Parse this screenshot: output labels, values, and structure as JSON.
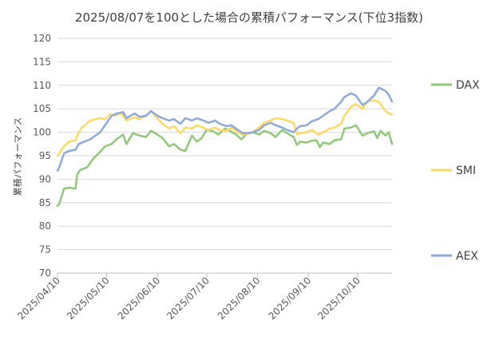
{
  "chart_data": {
    "type": "line",
    "title": "2025/08/07を100とした場合の累積パフォーマンス(下位3指数)",
    "xlabel": "",
    "ylabel": "累積パフォーマンス",
    "ylim": [
      70,
      120
    ],
    "yticks": [
      70,
      75,
      80,
      85,
      90,
      95,
      100,
      105,
      110,
      115,
      120
    ],
    "x_start": "2025/04/10",
    "x_end": "2025/10/31",
    "xticks": [
      "2025/04/10",
      "2025/05/10",
      "2025/06/10",
      "2025/07/10",
      "2025/08/10",
      "2025/09/10",
      "2025/10/10"
    ],
    "grid": "horizontal",
    "legend": "right",
    "series": [
      {
        "name": "DAX",
        "color": "#90C978",
        "points": [
          [
            "2025/04/10",
            84.3
          ],
          [
            "2025/04/11",
            84.7
          ],
          [
            "2025/04/14",
            88.0
          ],
          [
            "2025/04/17",
            88.2
          ],
          [
            "2025/04/21",
            88.0
          ],
          [
            "2025/04/22",
            91.0
          ],
          [
            "2025/04/24",
            92.0
          ],
          [
            "2025/04/28",
            92.5
          ],
          [
            "2025/05/02",
            94.5
          ],
          [
            "2025/05/06",
            95.8
          ],
          [
            "2025/05/09",
            97.0
          ],
          [
            "2025/05/13",
            97.5
          ],
          [
            "2025/05/16",
            98.5
          ],
          [
            "2025/05/20",
            99.5
          ],
          [
            "2025/05/22",
            97.5
          ],
          [
            "2025/05/26",
            99.8
          ],
          [
            "2025/05/30",
            99.3
          ],
          [
            "2025/06/03",
            99.0
          ],
          [
            "2025/06/06",
            100.3
          ],
          [
            "2025/06/10",
            99.5
          ],
          [
            "2025/06/13",
            98.8
          ],
          [
            "2025/06/17",
            97.0
          ],
          [
            "2025/06/20",
            97.5
          ],
          [
            "2025/06/24",
            96.3
          ],
          [
            "2025/06/27",
            96.0
          ],
          [
            "2025/07/01",
            99.3
          ],
          [
            "2025/07/04",
            98.0
          ],
          [
            "2025/07/07",
            98.8
          ],
          [
            "2025/07/10",
            100.5
          ],
          [
            "2025/07/14",
            100.2
          ],
          [
            "2025/07/17",
            99.5
          ],
          [
            "2025/07/21",
            100.8
          ],
          [
            "2025/07/24",
            100.3
          ],
          [
            "2025/07/28",
            99.5
          ],
          [
            "2025/07/31",
            98.5
          ],
          [
            "2025/08/04",
            99.8
          ],
          [
            "2025/08/07",
            100.0
          ],
          [
            "2025/08/11",
            99.5
          ],
          [
            "2025/08/14",
            100.3
          ],
          [
            "2025/08/18",
            99.8
          ],
          [
            "2025/08/21",
            99.0
          ],
          [
            "2025/08/25",
            100.5
          ],
          [
            "2025/08/28",
            99.8
          ],
          [
            "2025/09/01",
            99.0
          ],
          [
            "2025/09/03",
            97.3
          ],
          [
            "2025/09/05",
            98.0
          ],
          [
            "2025/09/09",
            97.8
          ],
          [
            "2025/09/12",
            98.2
          ],
          [
            "2025/09/15",
            98.3
          ],
          [
            "2025/09/17",
            96.8
          ],
          [
            "2025/09/19",
            97.8
          ],
          [
            "2025/09/23",
            97.5
          ],
          [
            "2025/09/26",
            98.3
          ],
          [
            "2025/09/30",
            98.5
          ],
          [
            "2025/10/02",
            100.8
          ],
          [
            "2025/10/06",
            101.0
          ],
          [
            "2025/10/09",
            101.5
          ],
          [
            "2025/10/13",
            99.3
          ],
          [
            "2025/10/16",
            99.8
          ],
          [
            "2025/10/20",
            100.2
          ],
          [
            "2025/10/22",
            98.8
          ],
          [
            "2025/10/24",
            100.3
          ],
          [
            "2025/10/27",
            99.3
          ],
          [
            "2025/10/29",
            100.0
          ],
          [
            "2025/10/31",
            97.5
          ]
        ]
      },
      {
        "name": "SMI",
        "color": "#FFD966",
        "points": [
          [
            "2025/04/10",
            95.0
          ],
          [
            "2025/04/11",
            95.5
          ],
          [
            "2025/04/14",
            97.0
          ],
          [
            "2025/04/17",
            98.0
          ],
          [
            "2025/04/21",
            98.3
          ],
          [
            "2025/04/23",
            100.0
          ],
          [
            "2025/04/25",
            101.0
          ],
          [
            "2025/04/30",
            102.5
          ],
          [
            "2025/05/06",
            103.0
          ],
          [
            "2025/05/09",
            102.8
          ],
          [
            "2025/05/12",
            103.8
          ],
          [
            "2025/05/15",
            103.5
          ],
          [
            "2025/05/19",
            104.0
          ],
          [
            "2025/05/22",
            102.5
          ],
          [
            "2025/05/27",
            103.2
          ],
          [
            "2025/05/30",
            102.8
          ],
          [
            "2025/06/03",
            103.5
          ],
          [
            "2025/06/06",
            104.5
          ],
          [
            "2025/06/10",
            103.0
          ],
          [
            "2025/06/13",
            101.8
          ],
          [
            "2025/06/17",
            100.8
          ],
          [
            "2025/06/20",
            101.3
          ],
          [
            "2025/06/24",
            99.8
          ],
          [
            "2025/06/27",
            101.0
          ],
          [
            "2025/07/01",
            100.8
          ],
          [
            "2025/07/04",
            101.5
          ],
          [
            "2025/07/08",
            101.0
          ],
          [
            "2025/07/11",
            100.5
          ],
          [
            "2025/07/15",
            101.0
          ],
          [
            "2025/07/18",
            100.5
          ],
          [
            "2025/07/22",
            100.3
          ],
          [
            "2025/07/25",
            101.0
          ],
          [
            "2025/07/29",
            100.0
          ],
          [
            "2025/08/01",
            99.5
          ],
          [
            "2025/08/05",
            99.8
          ],
          [
            "2025/08/07",
            100.0
          ],
          [
            "2025/08/11",
            101.0
          ],
          [
            "2025/08/14",
            102.0
          ],
          [
            "2025/08/18",
            102.5
          ],
          [
            "2025/08/21",
            103.0
          ],
          [
            "2025/08/25",
            102.8
          ],
          [
            "2025/08/28",
            102.5
          ],
          [
            "2025/09/01",
            102.0
          ],
          [
            "2025/09/03",
            99.5
          ],
          [
            "2025/09/05",
            99.8
          ],
          [
            "2025/09/09",
            100.0
          ],
          [
            "2025/09/12",
            100.5
          ],
          [
            "2025/09/16",
            99.5
          ],
          [
            "2025/09/19",
            100.0
          ],
          [
            "2025/09/23",
            100.8
          ],
          [
            "2025/09/26",
            101.0
          ],
          [
            "2025/09/30",
            101.8
          ],
          [
            "2025/10/02",
            103.5
          ],
          [
            "2025/10/06",
            105.5
          ],
          [
            "2025/10/09",
            106.0
          ],
          [
            "2025/10/13",
            105.0
          ],
          [
            "2025/10/16",
            106.5
          ],
          [
            "2025/10/20",
            106.8
          ],
          [
            "2025/10/23",
            106.5
          ],
          [
            "2025/10/27",
            104.5
          ],
          [
            "2025/10/29",
            104.0
          ],
          [
            "2025/10/31",
            103.8
          ]
        ]
      },
      {
        "name": "AEX",
        "color": "#8EA9DB",
        "points": [
          [
            "2025/04/10",
            91.8
          ],
          [
            "2025/04/11",
            92.5
          ],
          [
            "2025/04/14",
            95.5
          ],
          [
            "2025/04/17",
            96.0
          ],
          [
            "2025/04/21",
            96.3
          ],
          [
            "2025/04/23",
            97.5
          ],
          [
            "2025/04/25",
            97.8
          ],
          [
            "2025/04/30",
            98.5
          ],
          [
            "2025/05/06",
            100.0
          ],
          [
            "2025/05/09",
            101.5
          ],
          [
            "2025/05/13",
            103.5
          ],
          [
            "2025/05/16",
            104.0
          ],
          [
            "2025/05/20",
            104.3
          ],
          [
            "2025/05/22",
            103.0
          ],
          [
            "2025/05/27",
            104.0
          ],
          [
            "2025/05/30",
            103.3
          ],
          [
            "2025/06/03",
            103.5
          ],
          [
            "2025/06/06",
            104.5
          ],
          [
            "2025/06/10",
            103.5
          ],
          [
            "2025/06/13",
            103.0
          ],
          [
            "2025/06/17",
            102.5
          ],
          [
            "2025/06/20",
            102.8
          ],
          [
            "2025/06/24",
            101.8
          ],
          [
            "2025/06/27",
            103.0
          ],
          [
            "2025/07/01",
            102.5
          ],
          [
            "2025/07/04",
            103.0
          ],
          [
            "2025/07/08",
            102.5
          ],
          [
            "2025/07/11",
            102.0
          ],
          [
            "2025/07/15",
            102.5
          ],
          [
            "2025/07/18",
            101.8
          ],
          [
            "2025/07/22",
            101.3
          ],
          [
            "2025/07/25",
            101.5
          ],
          [
            "2025/07/29",
            100.5
          ],
          [
            "2025/08/01",
            99.8
          ],
          [
            "2025/08/05",
            99.8
          ],
          [
            "2025/08/07",
            100.0
          ],
          [
            "2025/08/11",
            100.5
          ],
          [
            "2025/08/14",
            101.5
          ],
          [
            "2025/08/18",
            102.0
          ],
          [
            "2025/08/21",
            101.5
          ],
          [
            "2025/08/25",
            101.0
          ],
          [
            "2025/08/28",
            100.5
          ],
          [
            "2025/09/01",
            100.0
          ],
          [
            "2025/09/03",
            100.8
          ],
          [
            "2025/09/05",
            101.3
          ],
          [
            "2025/09/09",
            101.5
          ],
          [
            "2025/09/12",
            102.3
          ],
          [
            "2025/09/16",
            102.8
          ],
          [
            "2025/09/19",
            103.5
          ],
          [
            "2025/09/23",
            104.5
          ],
          [
            "2025/09/26",
            105.0
          ],
          [
            "2025/09/30",
            106.5
          ],
          [
            "2025/10/02",
            107.5
          ],
          [
            "2025/10/06",
            108.3
          ],
          [
            "2025/10/09",
            107.8
          ],
          [
            "2025/10/13",
            105.8
          ],
          [
            "2025/10/16",
            106.5
          ],
          [
            "2025/10/20",
            107.8
          ],
          [
            "2025/10/23",
            109.5
          ],
          [
            "2025/10/27",
            108.8
          ],
          [
            "2025/10/29",
            108.0
          ],
          [
            "2025/10/31",
            106.5
          ]
        ]
      }
    ]
  }
}
